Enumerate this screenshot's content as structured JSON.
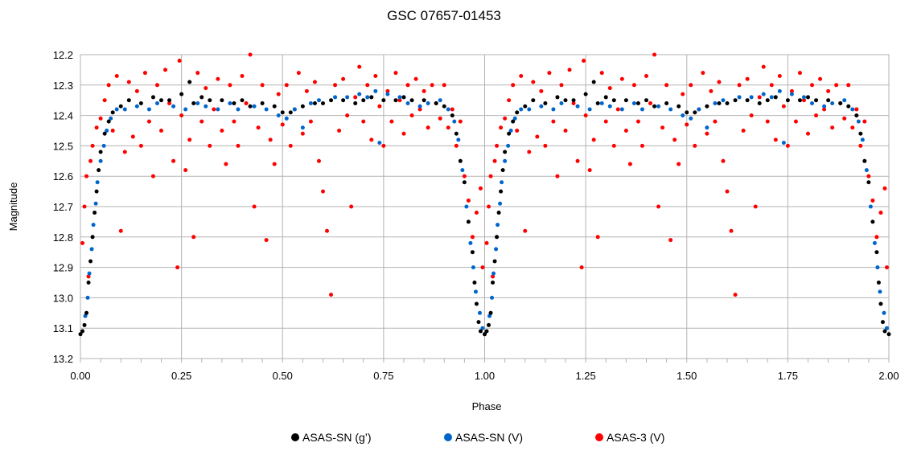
{
  "chart_data": {
    "type": "scatter",
    "title": "GSC 07657-01453",
    "xlabel": "Phase",
    "ylabel": "Magnitude",
    "xlim": [
      0,
      2
    ],
    "ylim": [
      12.2,
      13.2
    ],
    "y_inverted": true,
    "x_ticks": [
      "0.00",
      "0.25",
      "0.50",
      "0.75",
      "1.00",
      "1.25",
      "1.50",
      "1.75",
      "2.00"
    ],
    "y_ticks": [
      "12.2",
      "12.3",
      "12.4",
      "12.5",
      "12.6",
      "12.7",
      "12.8",
      "12.9",
      "13.0",
      "13.1",
      "13.2"
    ],
    "grid": true,
    "legend_position": "bottom",
    "series": [
      {
        "name": "ASAS-SN (g’)",
        "color": "#000000",
        "points": [
          [
            0.0,
            13.12
          ],
          [
            0.005,
            13.11
          ],
          [
            0.01,
            13.09
          ],
          [
            0.015,
            13.05
          ],
          [
            0.02,
            12.95
          ],
          [
            0.025,
            12.88
          ],
          [
            0.03,
            12.8
          ],
          [
            0.035,
            12.72
          ],
          [
            0.04,
            12.65
          ],
          [
            0.045,
            12.58
          ],
          [
            0.05,
            12.52
          ],
          [
            0.06,
            12.46
          ],
          [
            0.07,
            12.42
          ],
          [
            0.08,
            12.39
          ],
          [
            0.1,
            12.37
          ],
          [
            0.12,
            12.35
          ],
          [
            0.15,
            12.36
          ],
          [
            0.18,
            12.34
          ],
          [
            0.2,
            12.35
          ],
          [
            0.22,
            12.35
          ],
          [
            0.25,
            12.33
          ],
          [
            0.27,
            12.29
          ],
          [
            0.28,
            12.36
          ],
          [
            0.3,
            12.34
          ],
          [
            0.32,
            12.35
          ],
          [
            0.35,
            12.35
          ],
          [
            0.38,
            12.36
          ],
          [
            0.4,
            12.35
          ],
          [
            0.42,
            12.37
          ],
          [
            0.45,
            12.36
          ],
          [
            0.48,
            12.37
          ],
          [
            0.5,
            12.39
          ],
          [
            0.52,
            12.39
          ],
          [
            0.55,
            12.37
          ],
          [
            0.58,
            12.36
          ],
          [
            0.6,
            12.36
          ],
          [
            0.62,
            12.35
          ],
          [
            0.65,
            12.35
          ],
          [
            0.68,
            12.36
          ],
          [
            0.7,
            12.35
          ],
          [
            0.72,
            12.34
          ],
          [
            0.75,
            12.35
          ],
          [
            0.78,
            12.35
          ],
          [
            0.8,
            12.34
          ],
          [
            0.82,
            12.35
          ],
          [
            0.85,
            12.35
          ],
          [
            0.88,
            12.36
          ],
          [
            0.9,
            12.37
          ],
          [
            0.92,
            12.4
          ],
          [
            0.93,
            12.46
          ],
          [
            0.94,
            12.55
          ],
          [
            0.95,
            12.62
          ],
          [
            0.96,
            12.75
          ],
          [
            0.97,
            12.85
          ],
          [
            0.975,
            12.95
          ],
          [
            0.98,
            13.02
          ],
          [
            0.985,
            13.08
          ],
          [
            0.99,
            13.11
          ],
          [
            1.0,
            13.12
          ]
        ]
      },
      {
        "name": "ASAS-SN (V)",
        "color": "#0066cc",
        "points": [
          [
            0.012,
            13.06
          ],
          [
            0.018,
            13.0
          ],
          [
            0.022,
            12.92
          ],
          [
            0.028,
            12.84
          ],
          [
            0.032,
            12.76
          ],
          [
            0.038,
            12.69
          ],
          [
            0.042,
            12.62
          ],
          [
            0.05,
            12.55
          ],
          [
            0.058,
            12.5
          ],
          [
            0.065,
            12.45
          ],
          [
            0.075,
            12.41
          ],
          [
            0.09,
            12.38
          ],
          [
            0.11,
            12.38
          ],
          [
            0.14,
            12.37
          ],
          [
            0.17,
            12.38
          ],
          [
            0.19,
            12.36
          ],
          [
            0.23,
            12.37
          ],
          [
            0.26,
            12.38
          ],
          [
            0.29,
            12.36
          ],
          [
            0.31,
            12.37
          ],
          [
            0.34,
            12.38
          ],
          [
            0.37,
            12.36
          ],
          [
            0.39,
            12.38
          ],
          [
            0.43,
            12.37
          ],
          [
            0.46,
            12.38
          ],
          [
            0.49,
            12.4
          ],
          [
            0.51,
            12.41
          ],
          [
            0.53,
            12.38
          ],
          [
            0.55,
            12.44
          ],
          [
            0.57,
            12.36
          ],
          [
            0.59,
            12.35
          ],
          [
            0.63,
            12.34
          ],
          [
            0.66,
            12.34
          ],
          [
            0.69,
            12.33
          ],
          [
            0.71,
            12.34
          ],
          [
            0.73,
            12.32
          ],
          [
            0.74,
            12.49
          ],
          [
            0.76,
            12.33
          ],
          [
            0.79,
            12.34
          ],
          [
            0.81,
            12.36
          ],
          [
            0.84,
            12.37
          ],
          [
            0.86,
            12.36
          ],
          [
            0.89,
            12.35
          ],
          [
            0.91,
            12.38
          ],
          [
            0.925,
            12.42
          ],
          [
            0.935,
            12.48
          ],
          [
            0.945,
            12.58
          ],
          [
            0.955,
            12.7
          ],
          [
            0.965,
            12.82
          ],
          [
            0.972,
            12.9
          ],
          [
            0.978,
            12.98
          ],
          [
            0.988,
            13.05
          ],
          [
            0.995,
            13.1
          ]
        ]
      },
      {
        "name": "ASAS-3 (V)",
        "color": "#ff0000",
        "points": [
          [
            0.005,
            12.82
          ],
          [
            0.01,
            12.7
          ],
          [
            0.015,
            12.6
          ],
          [
            0.02,
            12.93
          ],
          [
            0.025,
            12.55
          ],
          [
            0.03,
            12.5
          ],
          [
            0.04,
            12.44
          ],
          [
            0.05,
            12.41
          ],
          [
            0.06,
            12.35
          ],
          [
            0.07,
            12.3
          ],
          [
            0.08,
            12.45
          ],
          [
            0.09,
            12.27
          ],
          [
            0.1,
            12.78
          ],
          [
            0.11,
            12.52
          ],
          [
            0.12,
            12.29
          ],
          [
            0.13,
            12.47
          ],
          [
            0.14,
            12.32
          ],
          [
            0.15,
            12.5
          ],
          [
            0.16,
            12.26
          ],
          [
            0.17,
            12.42
          ],
          [
            0.18,
            12.6
          ],
          [
            0.19,
            12.3
          ],
          [
            0.2,
            12.45
          ],
          [
            0.21,
            12.25
          ],
          [
            0.22,
            12.36
          ],
          [
            0.23,
            12.55
          ],
          [
            0.24,
            12.9
          ],
          [
            0.245,
            12.22
          ],
          [
            0.25,
            12.4
          ],
          [
            0.26,
            12.58
          ],
          [
            0.27,
            12.48
          ],
          [
            0.28,
            12.8
          ],
          [
            0.29,
            12.26
          ],
          [
            0.3,
            12.42
          ],
          [
            0.31,
            12.31
          ],
          [
            0.32,
            12.5
          ],
          [
            0.33,
            12.38
          ],
          [
            0.34,
            12.28
          ],
          [
            0.35,
            12.45
          ],
          [
            0.36,
            12.56
          ],
          [
            0.37,
            12.3
          ],
          [
            0.38,
            12.42
          ],
          [
            0.39,
            12.5
          ],
          [
            0.4,
            12.27
          ],
          [
            0.41,
            12.36
          ],
          [
            0.42,
            12.2
          ],
          [
            0.43,
            12.7
          ],
          [
            0.44,
            12.44
          ],
          [
            0.45,
            12.3
          ],
          [
            0.46,
            12.81
          ],
          [
            0.47,
            12.48
          ],
          [
            0.48,
            12.56
          ],
          [
            0.49,
            12.33
          ],
          [
            0.5,
            12.43
          ],
          [
            0.51,
            12.3
          ],
          [
            0.52,
            12.5
          ],
          [
            0.53,
            12.38
          ],
          [
            0.54,
            12.26
          ],
          [
            0.55,
            12.46
          ],
          [
            0.56,
            12.32
          ],
          [
            0.57,
            12.42
          ],
          [
            0.58,
            12.29
          ],
          [
            0.59,
            12.55
          ],
          [
            0.6,
            12.65
          ],
          [
            0.61,
            12.78
          ],
          [
            0.62,
            12.99
          ],
          [
            0.63,
            12.3
          ],
          [
            0.64,
            12.45
          ],
          [
            0.65,
            12.28
          ],
          [
            0.66,
            12.4
          ],
          [
            0.67,
            12.7
          ],
          [
            0.68,
            12.34
          ],
          [
            0.69,
            12.24
          ],
          [
            0.7,
            12.42
          ],
          [
            0.71,
            12.3
          ],
          [
            0.72,
            12.48
          ],
          [
            0.73,
            12.27
          ],
          [
            0.74,
            12.37
          ],
          [
            0.75,
            12.5
          ],
          [
            0.76,
            12.32
          ],
          [
            0.77,
            12.42
          ],
          [
            0.78,
            12.26
          ],
          [
            0.79,
            12.35
          ],
          [
            0.8,
            12.46
          ],
          [
            0.81,
            12.3
          ],
          [
            0.82,
            12.4
          ],
          [
            0.83,
            12.28
          ],
          [
            0.84,
            12.38
          ],
          [
            0.85,
            12.32
          ],
          [
            0.86,
            12.44
          ],
          [
            0.87,
            12.3
          ],
          [
            0.88,
            12.36
          ],
          [
            0.89,
            12.41
          ],
          [
            0.9,
            12.3
          ],
          [
            0.91,
            12.44
          ],
          [
            0.92,
            12.38
          ],
          [
            0.93,
            12.5
          ],
          [
            0.94,
            12.42
          ],
          [
            0.95,
            12.6
          ],
          [
            0.96,
            12.68
          ],
          [
            0.97,
            12.8
          ],
          [
            0.98,
            12.72
          ],
          [
            0.99,
            12.64
          ],
          [
            0.995,
            12.9
          ]
        ]
      }
    ]
  }
}
